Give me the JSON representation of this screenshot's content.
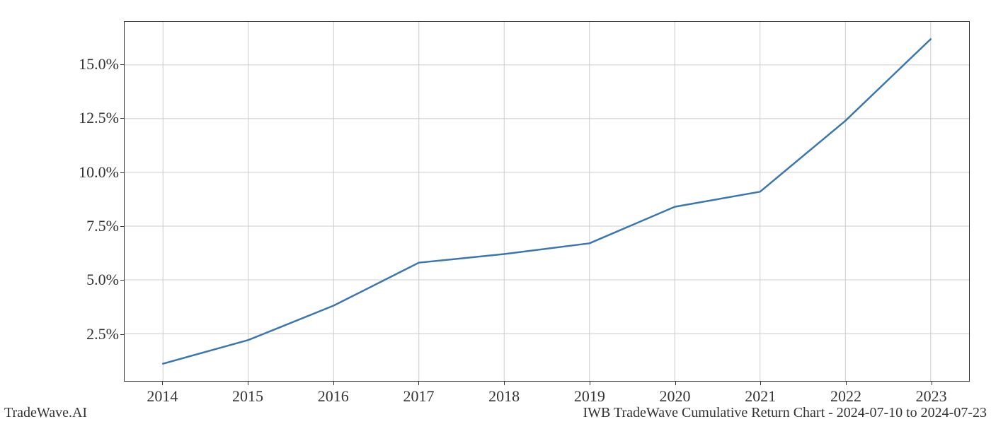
{
  "chart": {
    "type": "line",
    "x_values": [
      2014,
      2015,
      2016,
      2017,
      2018,
      2019,
      2020,
      2021,
      2022,
      2023
    ],
    "y_values": [
      1.1,
      2.2,
      3.8,
      5.8,
      6.2,
      6.7,
      8.4,
      9.1,
      12.4,
      16.2
    ],
    "line_color": "#3a76af",
    "line_width": 2.5,
    "background_color": "#ffffff",
    "grid_color": "#cccccc",
    "border_color": "#333333",
    "x_ticks": [
      2014,
      2015,
      2016,
      2017,
      2018,
      2019,
      2020,
      2021,
      2022,
      2023
    ],
    "x_tick_labels": [
      "2014",
      "2015",
      "2016",
      "2017",
      "2018",
      "2019",
      "2020",
      "2021",
      "2022",
      "2023"
    ],
    "y_ticks": [
      2.5,
      5.0,
      7.5,
      10.0,
      12.5,
      15.0
    ],
    "y_tick_labels": [
      "2.5%",
      "5.0%",
      "7.5%",
      "10.0%",
      "12.5%",
      "15.0%"
    ],
    "xlim": [
      2013.55,
      2023.45
    ],
    "ylim": [
      0.3,
      17.0
    ],
    "tick_fontsize": 22,
    "footer_fontsize": 20
  },
  "footer": {
    "left": "TradeWave.AI",
    "right": "IWB TradeWave Cumulative Return Chart - 2024-07-10 to 2024-07-23"
  }
}
